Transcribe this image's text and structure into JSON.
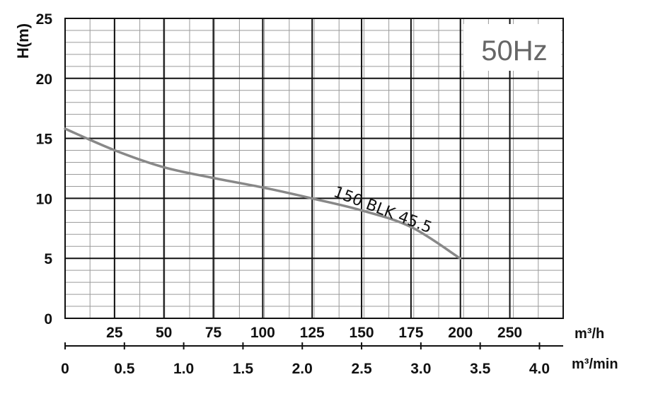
{
  "chart_data": {
    "type": "line",
    "frequency_label": "50Hz",
    "ylabel": "H(m)",
    "y_ticks": [
      "0",
      "5",
      "10",
      "15",
      "20",
      "25"
    ],
    "ylim": [
      0,
      25
    ],
    "x_ticks_m3h": [
      "25",
      "50",
      "75",
      "100",
      "125",
      "150",
      "175",
      "200",
      "250"
    ],
    "x_unit_m3h": "m³/h",
    "x_ticks_m3min": [
      "0",
      "0.5",
      "1.0",
      "1.5",
      "2.0",
      "2.5",
      "3.0",
      "3.5",
      "4.0"
    ],
    "x_unit_m3min": "m³/min",
    "xlim_m3min": [
      0,
      4.2
    ],
    "grid": true,
    "series": [
      {
        "name": "150 BLK 45.5",
        "x": [
          0,
          0.42,
          0.83,
          1.25,
          1.67,
          2.08,
          2.5,
          2.92,
          3.33
        ],
        "y": [
          15.8,
          14.0,
          12.6,
          11.7,
          10.9,
          10.0,
          9.0,
          7.6,
          5.0
        ]
      }
    ]
  }
}
